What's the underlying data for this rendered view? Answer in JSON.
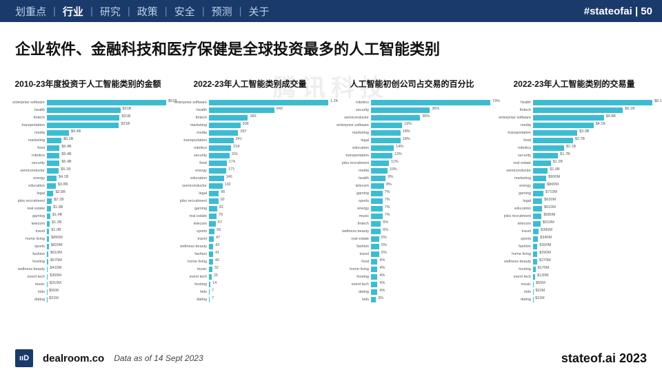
{
  "colors": {
    "topbar_bg": "#1a3a6b",
    "bar_fill": "#3dbcd1",
    "text": "#111111"
  },
  "topbar": {
    "items": [
      {
        "label": "划重点",
        "active": false
      },
      {
        "label": "行业",
        "active": true
      },
      {
        "label": "研究",
        "active": false
      },
      {
        "label": "政策",
        "active": false
      },
      {
        "label": "安全",
        "active": false
      },
      {
        "label": "预测",
        "active": false
      },
      {
        "label": "关于",
        "active": false
      }
    ],
    "tag": "#stateofai | 50"
  },
  "main_title": "企业软件、金融科技和医疗保健是全球投资最多的人工智能类别",
  "watermark": "腾讯科技",
  "charts": [
    {
      "title": "2010-23年度投资于人工智能类别的金额",
      "max": 51000,
      "rows": [
        {
          "label": "enterprise software",
          "value": 51100,
          "val_text": "$51B"
        },
        {
          "label": "health",
          "value": 31400,
          "val_text": "$31B"
        },
        {
          "label": "fintech",
          "value": 31100,
          "val_text": "$31B"
        },
        {
          "label": "transportation",
          "value": 30800,
          "val_text": "$31B"
        },
        {
          "label": "media",
          "value": 9400,
          "val_text": "$9.4B"
        },
        {
          "label": "marketing",
          "value": 6200,
          "val_text": "$6.2B"
        },
        {
          "label": "food",
          "value": 5400,
          "val_text": "$5.4B"
        },
        {
          "label": "robotics",
          "value": 5400,
          "val_text": "$5.4B"
        },
        {
          "label": "security",
          "value": 5400,
          "val_text": "$5.4B"
        },
        {
          "label": "semiconductor",
          "value": 5100,
          "val_text": "$5.1B"
        },
        {
          "label": "energy",
          "value": 4100,
          "val_text": "$4.1B"
        },
        {
          "label": "education",
          "value": 3800,
          "val_text": "$3.8B"
        },
        {
          "label": "legal",
          "value": 2800,
          "val_text": "$2.8B"
        },
        {
          "label": "jobs recruitment",
          "value": 2100,
          "val_text": "$2.1B"
        },
        {
          "label": "real estate",
          "value": 1800,
          "val_text": "$1.8B"
        },
        {
          "label": "gaming",
          "value": 1400,
          "val_text": "$1.4B"
        },
        {
          "label": "telecom",
          "value": 1200,
          "val_text": "$1.2B"
        },
        {
          "label": "travel",
          "value": 990,
          "val_text": "$1.0B"
        },
        {
          "label": "home living",
          "value": 890,
          "val_text": "$890M"
        },
        {
          "label": "sports",
          "value": 820,
          "val_text": "$820M"
        },
        {
          "label": "fashion",
          "value": 610,
          "val_text": "$610M"
        },
        {
          "label": "hosting",
          "value": 570,
          "val_text": "$570M"
        },
        {
          "label": "wellness beauty",
          "value": 410,
          "val_text": "$410M"
        },
        {
          "label": "event tech",
          "value": 350,
          "val_text": "$350M"
        },
        {
          "label": "music",
          "value": 310,
          "val_text": "$310M"
        },
        {
          "label": "kids",
          "value": 55,
          "val_text": "$55M"
        },
        {
          "label": "dating",
          "value": 31,
          "val_text": "$31M"
        }
      ]
    },
    {
      "title": "2022-23年人工智能类别成交量",
      "max": 1170,
      "rows": [
        {
          "label": "enterprise software",
          "value": 1170,
          "val_text": "1.2K"
        },
        {
          "label": "health",
          "value": 642,
          "val_text": "642"
        },
        {
          "label": "fintech",
          "value": 382,
          "val_text": "382"
        },
        {
          "label": "marketing",
          "value": 308,
          "val_text": "308"
        },
        {
          "label": "media",
          "value": 287,
          "val_text": "287"
        },
        {
          "label": "transportation",
          "value": 241,
          "val_text": "241"
        },
        {
          "label": "robotics",
          "value": 218,
          "val_text": "218"
        },
        {
          "label": "security",
          "value": 201,
          "val_text": "201"
        },
        {
          "label": "food",
          "value": 174,
          "val_text": "174"
        },
        {
          "label": "energy",
          "value": 171,
          "val_text": "171"
        },
        {
          "label": "education",
          "value": 146,
          "val_text": "146"
        },
        {
          "label": "semiconductor",
          "value": 132,
          "val_text": "132"
        },
        {
          "label": "legal",
          "value": 96,
          "val_text": "96"
        },
        {
          "label": "jobs recruitment",
          "value": 92,
          "val_text": "92"
        },
        {
          "label": "gaming",
          "value": 81,
          "val_text": "81"
        },
        {
          "label": "real estate",
          "value": 76,
          "val_text": "76"
        },
        {
          "label": "telecom",
          "value": 67,
          "val_text": "67"
        },
        {
          "label": "sports",
          "value": 56,
          "val_text": "56"
        },
        {
          "label": "travel",
          "value": 47,
          "val_text": "47"
        },
        {
          "label": "wellness beauty",
          "value": 42,
          "val_text": "42"
        },
        {
          "label": "fashion",
          "value": 41,
          "val_text": "41"
        },
        {
          "label": "home living",
          "value": 40,
          "val_text": "40"
        },
        {
          "label": "music",
          "value": 32,
          "val_text": "32"
        },
        {
          "label": "event tech",
          "value": 25,
          "val_text": "25"
        },
        {
          "label": "hosting",
          "value": 14,
          "val_text": "14"
        },
        {
          "label": "kids",
          "value": 7,
          "val_text": "7"
        },
        {
          "label": "dating",
          "value": 7,
          "val_text": "7"
        }
      ]
    },
    {
      "title": "人工智能初创公司占交易的百分比",
      "max": 73,
      "rows": [
        {
          "label": "robotics",
          "value": 73,
          "val_text": "73%"
        },
        {
          "label": "security",
          "value": 36,
          "val_text": "36%"
        },
        {
          "label": "semiconductor",
          "value": 30,
          "val_text": "30%"
        },
        {
          "label": "enterprise software",
          "value": 19,
          "val_text": "19%"
        },
        {
          "label": "marketing",
          "value": 18,
          "val_text": "18%"
        },
        {
          "label": "legal",
          "value": 18,
          "val_text": "18%"
        },
        {
          "label": "education",
          "value": 14,
          "val_text": "14%"
        },
        {
          "label": "transportation",
          "value": 13,
          "val_text": "13%"
        },
        {
          "label": "jobs recruitment",
          "value": 11,
          "val_text": "11%"
        },
        {
          "label": "media",
          "value": 10,
          "val_text": "10%"
        },
        {
          "label": "health",
          "value": 9,
          "val_text": "9%"
        },
        {
          "label": "telecom",
          "value": 8,
          "val_text": "8%"
        },
        {
          "label": "gaming",
          "value": 7,
          "val_text": "7%"
        },
        {
          "label": "sports",
          "value": 7,
          "val_text": "7%"
        },
        {
          "label": "energy",
          "value": 7,
          "val_text": "7%"
        },
        {
          "label": "music",
          "value": 7,
          "val_text": "7%"
        },
        {
          "label": "fintech",
          "value": 6,
          "val_text": "6%"
        },
        {
          "label": "wellness beauty",
          "value": 6,
          "val_text": "6%"
        },
        {
          "label": "real estate",
          "value": 5,
          "val_text": "5%"
        },
        {
          "label": "fashion",
          "value": 5,
          "val_text": "5%"
        },
        {
          "label": "travel",
          "value": 5,
          "val_text": "5%"
        },
        {
          "label": "food",
          "value": 4,
          "val_text": "4%"
        },
        {
          "label": "home living",
          "value": 4,
          "val_text": "4%"
        },
        {
          "label": "hosting",
          "value": 4,
          "val_text": "4%"
        },
        {
          "label": "event tech",
          "value": 4,
          "val_text": "4%"
        },
        {
          "label": "dating",
          "value": 4,
          "val_text": "4%"
        },
        {
          "label": "kids",
          "value": 3,
          "val_text": "3%"
        }
      ]
    },
    {
      "title": "2022-23年人工智能类别的交易量",
      "max": 8100,
      "rows": [
        {
          "label": "health",
          "value": 8100,
          "val_text": "$8.1B"
        },
        {
          "label": "fintech",
          "value": 6100,
          "val_text": "$6.1B"
        },
        {
          "label": "enterprise software",
          "value": 4800,
          "val_text": "$4.8B"
        },
        {
          "label": "media",
          "value": 4100,
          "val_text": "$4.1B"
        },
        {
          "label": "transportation",
          "value": 3000,
          "val_text": "$3.0B"
        },
        {
          "label": "food",
          "value": 2700,
          "val_text": "$2.7B"
        },
        {
          "label": "robotics",
          "value": 2100,
          "val_text": "$2.1B"
        },
        {
          "label": "security",
          "value": 1700,
          "val_text": "$1.7B"
        },
        {
          "label": "real estate",
          "value": 1200,
          "val_text": "$1.2B"
        },
        {
          "label": "semiconductor",
          "value": 1000,
          "val_text": "$1.0B"
        },
        {
          "label": "marketing",
          "value": 900,
          "val_text": "$900M"
        },
        {
          "label": "energy",
          "value": 800,
          "val_text": "$800M"
        },
        {
          "label": "gaming",
          "value": 710,
          "val_text": "$710M"
        },
        {
          "label": "legal",
          "value": 620,
          "val_text": "$620M"
        },
        {
          "label": "education",
          "value": 610,
          "val_text": "$610M"
        },
        {
          "label": "jobs recruitment",
          "value": 580,
          "val_text": "$580M"
        },
        {
          "label": "telecom",
          "value": 510,
          "val_text": "$510M"
        },
        {
          "label": "travel",
          "value": 380,
          "val_text": "$380M"
        },
        {
          "label": "sports",
          "value": 340,
          "val_text": "$340M"
        },
        {
          "label": "fashion",
          "value": 300,
          "val_text": "$300M"
        },
        {
          "label": "home living",
          "value": 290,
          "val_text": "$290M"
        },
        {
          "label": "wellness beauty",
          "value": 270,
          "val_text": "$270M"
        },
        {
          "label": "hosting",
          "value": 170,
          "val_text": "$170M"
        },
        {
          "label": "event tech",
          "value": 130,
          "val_text": "$130M"
        },
        {
          "label": "music",
          "value": 50,
          "val_text": "$50M"
        },
        {
          "label": "kids",
          "value": 22,
          "val_text": "$22M"
        },
        {
          "label": "dating",
          "value": 11,
          "val_text": "$11M"
        }
      ]
    }
  ],
  "footer": {
    "logo_text": "ııD",
    "brand": "dealroom.co",
    "asof": "Data as of 14 Sept 2023",
    "right": "stateof.ai 2023"
  }
}
